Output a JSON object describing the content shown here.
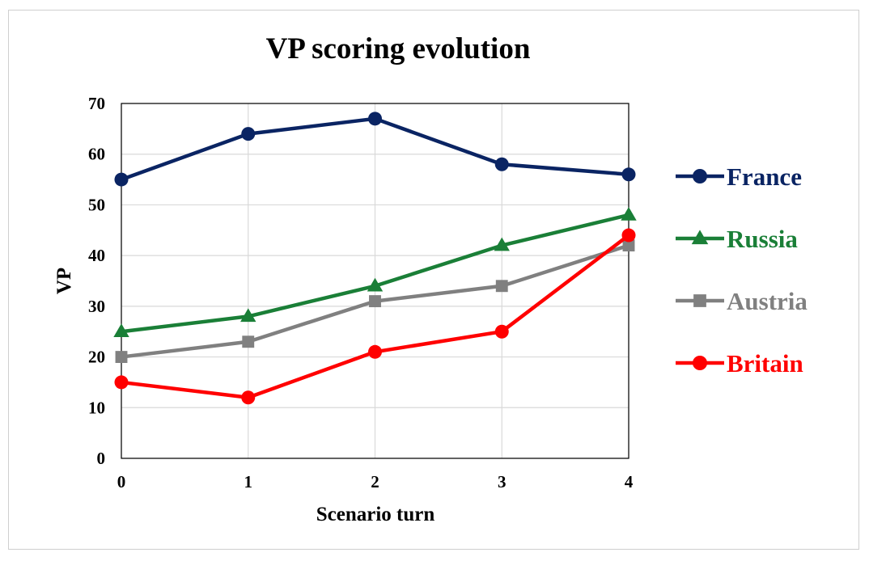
{
  "chart_data": {
    "type": "line",
    "title": "VP scoring evolution",
    "xlabel": "Scenario turn",
    "ylabel": "VP",
    "x": [
      0,
      1,
      2,
      3,
      4
    ],
    "xlim": [
      0,
      4
    ],
    "ylim": [
      0,
      70
    ],
    "yticks": [
      0,
      10,
      20,
      30,
      40,
      50,
      60,
      70
    ],
    "grid": true,
    "legend_position": "right",
    "series": [
      {
        "name": "France",
        "color": "#0a2463",
        "marker": "circle",
        "values": [
          55,
          64,
          67,
          58,
          56
        ]
      },
      {
        "name": "Russia",
        "color": "#1a7f37",
        "marker": "triangle",
        "values": [
          25,
          28,
          34,
          42,
          48
        ]
      },
      {
        "name": "Austria",
        "color": "#808080",
        "marker": "square",
        "values": [
          20,
          23,
          31,
          34,
          42
        ]
      },
      {
        "name": "Britain",
        "color": "#ff0000",
        "marker": "circle",
        "values": [
          15,
          12,
          21,
          25,
          44
        ]
      }
    ]
  }
}
